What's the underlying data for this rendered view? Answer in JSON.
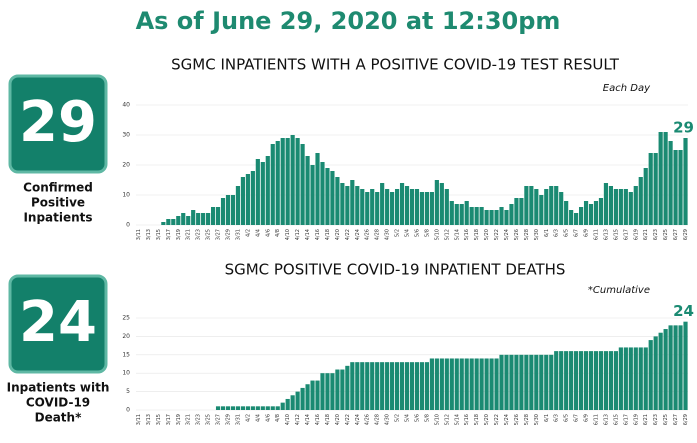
{
  "title": "As of June 29, 2020 at 12:30pm",
  "chart_data": [
    {
      "type": "bar",
      "title": "SGMC INPATIENTS WITH A POSITIVE COVID-19 TEST RESULT",
      "annotation": "Each Day",
      "stat_label": [
        "Confirmed",
        "Positive",
        "Inpatients"
      ],
      "color": "#1a8a72",
      "ylim": [
        0,
        40
      ],
      "yticks": [
        0,
        10,
        20,
        30,
        40
      ],
      "grid": true,
      "categories": [
        "3/11",
        null,
        "3/13",
        null,
        "3/15",
        null,
        "3/17",
        null,
        "3/19",
        null,
        "3/21",
        null,
        "3/23",
        null,
        "3/25",
        null,
        "3/27",
        null,
        "3/29",
        null,
        "3/31",
        null,
        "4/2",
        null,
        "4/4",
        null,
        "4/6",
        null,
        "4/8",
        null,
        "4/10",
        null,
        "4/12",
        null,
        "4/14",
        null,
        "4/16",
        null,
        "4/18",
        null,
        "4/20",
        null,
        "4/22",
        null,
        "4/24",
        null,
        "4/26",
        null,
        "4/28",
        null,
        "4/30",
        null,
        "5/2",
        null,
        "5/4",
        null,
        "5/6",
        null,
        "5/8",
        null,
        "5/10",
        null,
        "5/12",
        null,
        "5/14",
        null,
        "5/16",
        null,
        "5/18",
        null,
        "5/20",
        null,
        "5/22",
        null,
        "5/24",
        null,
        "5/26",
        null,
        "5/28",
        null,
        "5/30",
        null,
        "6/1",
        null,
        "6/3",
        null,
        "6/5",
        null,
        "6/7",
        null,
        "6/9",
        null,
        "6/11",
        null,
        "6/13",
        null,
        "6/15",
        null,
        "6/17",
        null,
        "6/19",
        null,
        "6/21",
        null,
        "6/23",
        null,
        "6/25",
        null,
        "6/27",
        null,
        "6/29"
      ],
      "values": [
        0,
        0,
        0,
        0,
        0,
        1,
        2,
        2,
        3,
        4,
        3,
        5,
        4,
        4,
        4,
        6,
        6,
        9,
        10,
        10,
        13,
        16,
        17,
        18,
        22,
        21,
        23,
        27,
        28,
        29,
        29,
        30,
        29,
        27,
        23,
        20,
        24,
        21,
        19,
        18,
        16,
        14,
        13,
        15,
        13,
        12,
        11,
        12,
        11,
        14,
        12,
        11,
        12,
        14,
        13,
        12,
        12,
        11,
        11,
        11,
        15,
        14,
        12,
        8,
        7,
        7,
        8,
        6,
        6,
        6,
        5,
        5,
        5,
        6,
        5,
        7,
        9,
        9,
        13,
        13,
        12,
        10,
        12,
        13,
        13,
        11,
        8,
        5,
        4,
        6,
        8,
        7,
        8,
        9,
        14,
        13,
        12,
        12,
        12,
        11,
        13,
        16,
        19,
        24,
        24,
        31,
        31,
        28,
        25,
        25,
        29
      ]
    },
    {
      "type": "bar",
      "title": "SGMC POSITIVE COVID-19 INPATIENT DEATHS",
      "annotation": "*Cumulative",
      "stat_label": [
        "Inpatients with",
        "COVID-19",
        "Death*"
      ],
      "color": "#1a8a72",
      "ylim": [
        0,
        25
      ],
      "yticks": [
        0,
        5,
        10,
        15,
        20,
        25
      ],
      "grid": true,
      "categories": [
        "3/11",
        null,
        "3/13",
        null,
        "3/15",
        null,
        "3/17",
        null,
        "3/19",
        null,
        "3/21",
        null,
        "3/23",
        null,
        "3/25",
        null,
        "3/27",
        null,
        "3/29",
        null,
        "3/31",
        null,
        "4/2",
        null,
        "4/4",
        null,
        "4/6",
        null,
        "4/8",
        null,
        "4/10",
        null,
        "4/12",
        null,
        "4/14",
        null,
        "4/16",
        null,
        "4/18",
        null,
        "4/20",
        null,
        "4/22",
        null,
        "4/24",
        null,
        "4/26",
        null,
        "4/28",
        null,
        "4/30",
        null,
        "5/2",
        null,
        "5/4",
        null,
        "5/6",
        null,
        "5/8",
        null,
        "5/10",
        null,
        "5/12",
        null,
        "5/14",
        null,
        "5/16",
        null,
        "5/18",
        null,
        "5/20",
        null,
        "5/22",
        null,
        "5/24",
        null,
        "5/26",
        null,
        "5/28",
        null,
        "5/30",
        null,
        "6/1",
        null,
        "6/3",
        null,
        "6/5",
        null,
        "6/7",
        null,
        "6/9",
        null,
        "6/11",
        null,
        "6/13",
        null,
        "6/15",
        null,
        "6/17",
        null,
        "6/19",
        null,
        "6/21",
        null,
        "6/23",
        null,
        "6/25",
        null,
        "6/27",
        null,
        "6/29"
      ],
      "values": [
        0,
        0,
        0,
        0,
        0,
        0,
        0,
        0,
        0,
        0,
        0,
        0,
        0,
        0,
        0,
        0,
        1,
        1,
        1,
        1,
        1,
        1,
        1,
        1,
        1,
        1,
        1,
        1,
        1,
        2,
        3,
        4,
        5,
        6,
        7,
        8,
        8,
        10,
        10,
        10,
        11,
        11,
        12,
        13,
        13,
        13,
        13,
        13,
        13,
        13,
        13,
        13,
        13,
        13,
        13,
        13,
        13,
        13,
        13,
        14,
        14,
        14,
        14,
        14,
        14,
        14,
        14,
        14,
        14,
        14,
        14,
        14,
        14,
        15,
        15,
        15,
        15,
        15,
        15,
        15,
        15,
        15,
        15,
        15,
        16,
        16,
        16,
        16,
        16,
        16,
        16,
        16,
        16,
        16,
        16,
        16,
        16,
        17,
        17,
        17,
        17,
        17,
        17,
        19,
        20,
        21,
        22,
        23,
        23,
        23,
        24
      ]
    }
  ]
}
